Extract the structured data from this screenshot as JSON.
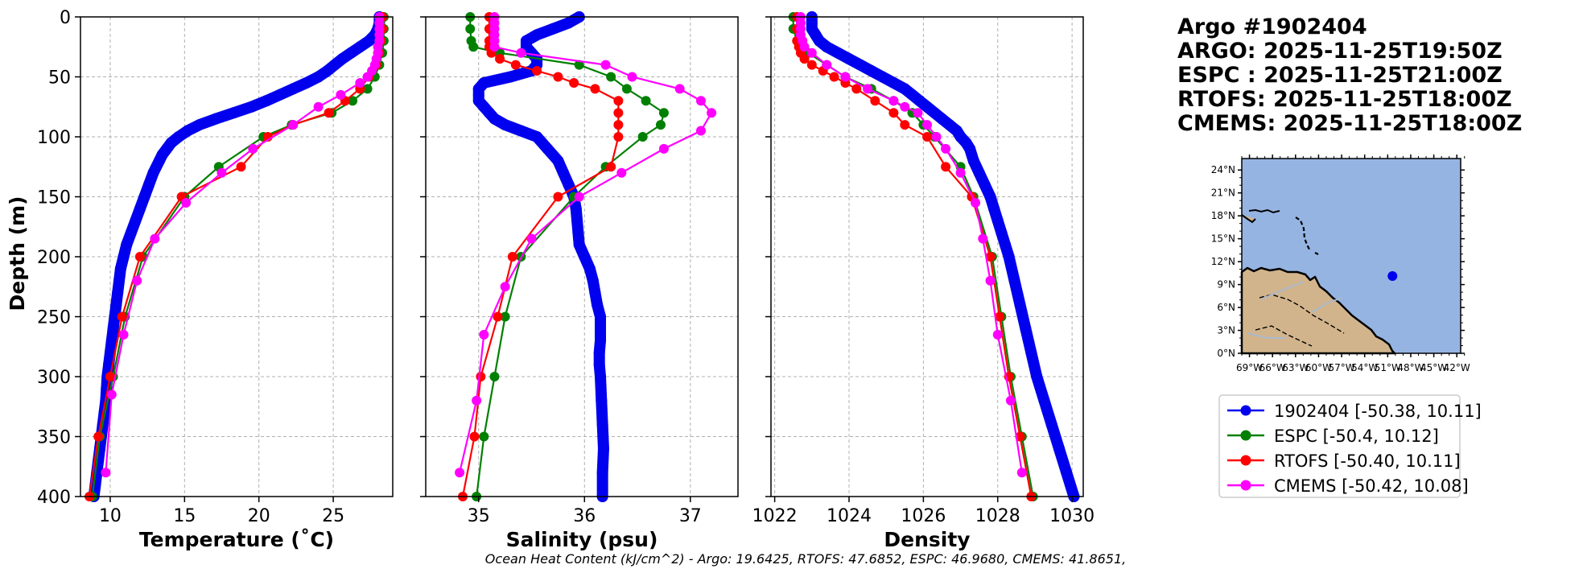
{
  "header": {
    "lines": [
      "Argo #1902404",
      "ARGO: 2025-11-25T19:50Z",
      "ESPC : 2025-11-25T21:00Z",
      "RTOFS: 2025-11-25T18:00Z",
      "CMEMS: 2025-11-25T18:00Z"
    ]
  },
  "footer": {
    "ohc": "Ocean Heat Content (kJ/cm^2) - Argo: 19.6425,  RTOFS: 47.6852,  ESPC: 46.9680,  CMEMS: 41.8651,"
  },
  "colors": {
    "argo": "#0000ee",
    "espc": "#008000",
    "rtofs": "#ff0000",
    "cmems": "#ff00ff",
    "ocean": "#95b4e2",
    "land": "#d2b48c"
  },
  "legend": [
    {
      "key": "argo",
      "label": "1902404 [-50.38, 10.11]"
    },
    {
      "key": "espc",
      "label": "ESPC [-50.4, 10.12]"
    },
    {
      "key": "rtofs",
      "label": "RTOFS [-50.40, 10.11]"
    },
    {
      "key": "cmems",
      "label": "CMEMS [-50.42, 10.08]"
    }
  ],
  "chart_data": [
    {
      "type": "line",
      "id": "temperature",
      "xlabel": "Temperature (˚C)",
      "ylabel": "Depth (m)",
      "xlim": [
        8,
        29
      ],
      "ylim": [
        400,
        0
      ],
      "xticks": [
        10,
        15,
        20,
        25
      ],
      "yticks": [
        0,
        50,
        100,
        150,
        200,
        250,
        300,
        350,
        400
      ],
      "grid": true,
      "series": [
        {
          "key": "argo",
          "name": "1902404",
          "marker": "dense",
          "depth": [
            0,
            5,
            10,
            15,
            20,
            25,
            30,
            35,
            40,
            45,
            50,
            55,
            60,
            65,
            70,
            75,
            80,
            85,
            90,
            95,
            100,
            105,
            110,
            115,
            120,
            130,
            140,
            150,
            160,
            170,
            180,
            190,
            200,
            210,
            220,
            230,
            240,
            250,
            260,
            270,
            280,
            290,
            300,
            310,
            320,
            330,
            340,
            350,
            360,
            370,
            380,
            390,
            400
          ],
          "values": [
            28.1,
            28.1,
            28.0,
            27.8,
            27.4,
            26.8,
            26.2,
            25.6,
            25.1,
            24.6,
            24.0,
            23.2,
            22.3,
            21.4,
            20.5,
            19.5,
            18.3,
            17.1,
            16.0,
            15.2,
            14.6,
            14.1,
            13.8,
            13.5,
            13.3,
            12.9,
            12.6,
            12.3,
            12.0,
            11.7,
            11.4,
            11.1,
            10.9,
            10.7,
            10.6,
            10.5,
            10.4,
            10.3,
            10.2,
            10.1,
            10.0,
            9.9,
            9.8,
            9.75,
            9.7,
            9.6,
            9.5,
            9.4,
            9.3,
            9.2,
            9.1,
            9.0,
            8.9
          ]
        },
        {
          "key": "espc",
          "name": "ESPC",
          "depth": [
            0,
            10,
            20,
            30,
            40,
            50,
            60,
            70,
            80,
            90,
            100,
            125,
            150,
            200,
            250,
            300,
            350,
            400
          ],
          "values": [
            28.4,
            28.4,
            28.4,
            28.3,
            28.1,
            27.8,
            27.3,
            26.3,
            24.9,
            22.2,
            20.3,
            17.3,
            15.0,
            12.2,
            11.0,
            10.2,
            9.3,
            8.8
          ]
        },
        {
          "key": "rtofs",
          "name": "RTOFS",
          "depth": [
            0,
            10,
            20,
            30,
            40,
            50,
            60,
            70,
            80,
            90,
            100,
            125,
            150,
            200,
            250,
            300,
            350,
            400
          ],
          "values": [
            28.3,
            28.3,
            28.2,
            28.1,
            27.9,
            27.4,
            26.8,
            25.8,
            24.7,
            22.3,
            20.6,
            18.8,
            14.8,
            12.0,
            10.8,
            10.0,
            9.2,
            8.6
          ]
        },
        {
          "key": "cmems",
          "name": "CMEMS",
          "depth": [
            0,
            5,
            10,
            15,
            20,
            25,
            30,
            35,
            40,
            45,
            50,
            55,
            65,
            75,
            90,
            110,
            130,
            155,
            185,
            220,
            265,
            315,
            380
          ],
          "values": [
            28.1,
            28.1,
            28.1,
            28.1,
            28.1,
            28.0,
            28.0,
            27.9,
            27.8,
            27.6,
            27.3,
            26.8,
            25.5,
            24.0,
            22.3,
            19.6,
            17.5,
            15.1,
            13.0,
            11.8,
            10.9,
            10.1,
            9.7
          ]
        }
      ]
    },
    {
      "type": "line",
      "id": "salinity",
      "xlabel": "Salinity (psu)",
      "xlim": [
        34.5,
        37.45
      ],
      "ylim": [
        400,
        0
      ],
      "xticks": [
        35,
        36,
        37
      ],
      "grid": true,
      "series": [
        {
          "key": "argo",
          "name": "1902404",
          "marker": "dense",
          "depth": [
            0,
            5,
            10,
            15,
            20,
            25,
            30,
            35,
            40,
            45,
            50,
            55,
            60,
            65,
            70,
            75,
            80,
            85,
            90,
            95,
            100,
            110,
            120,
            130,
            140,
            150,
            160,
            170,
            180,
            190,
            200,
            210,
            220,
            230,
            240,
            250,
            260,
            270,
            280,
            290,
            300,
            320,
            340,
            360,
            380,
            400
          ],
          "values": [
            35.95,
            35.85,
            35.7,
            35.55,
            35.45,
            35.45,
            35.5,
            35.55,
            35.55,
            35.5,
            35.3,
            35.05,
            35.0,
            35.0,
            35.0,
            35.05,
            35.1,
            35.15,
            35.25,
            35.4,
            35.55,
            35.65,
            35.75,
            35.8,
            35.85,
            35.9,
            35.92,
            35.93,
            35.94,
            35.95,
            36.0,
            36.05,
            36.08,
            36.1,
            36.12,
            36.15,
            36.15,
            36.15,
            36.14,
            36.14,
            36.15,
            36.16,
            36.17,
            36.18,
            36.17,
            36.17
          ]
        },
        {
          "key": "espc",
          "name": "ESPC",
          "depth": [
            0,
            10,
            20,
            25,
            30,
            40,
            50,
            60,
            70,
            80,
            90,
            100,
            125,
            150,
            200,
            250,
            300,
            350,
            400
          ],
          "values": [
            34.92,
            34.92,
            34.93,
            34.95,
            35.2,
            35.95,
            36.25,
            36.4,
            36.58,
            36.75,
            36.72,
            36.55,
            36.2,
            35.9,
            35.4,
            35.25,
            35.15,
            35.05,
            34.98
          ]
        },
        {
          "key": "rtofs",
          "name": "RTOFS",
          "depth": [
            0,
            10,
            20,
            25,
            30,
            35,
            40,
            45,
            50,
            55,
            60,
            70,
            80,
            90,
            100,
            125,
            150,
            200,
            250,
            300,
            350,
            400
          ],
          "values": [
            35.1,
            35.1,
            35.1,
            35.1,
            35.12,
            35.2,
            35.35,
            35.55,
            35.75,
            35.9,
            36.1,
            36.32,
            36.32,
            36.32,
            36.32,
            36.25,
            35.75,
            35.32,
            35.18,
            35.02,
            34.96,
            34.85
          ]
        },
        {
          "key": "cmems",
          "name": "CMEMS",
          "depth": [
            0,
            5,
            10,
            15,
            20,
            25,
            30,
            40,
            50,
            60,
            70,
            80,
            95,
            110,
            130,
            150,
            185,
            225,
            265,
            320,
            380
          ],
          "values": [
            35.15,
            35.15,
            35.15,
            35.15,
            35.15,
            35.15,
            35.4,
            36.2,
            36.45,
            36.9,
            37.1,
            37.2,
            37.1,
            36.75,
            36.35,
            35.95,
            35.5,
            35.25,
            35.05,
            34.98,
            34.82
          ]
        }
      ]
    },
    {
      "type": "line",
      "id": "density",
      "xlabel": "Density",
      "xlim": [
        1021.9,
        1030.3
      ],
      "ylim": [
        400,
        0
      ],
      "xticks": [
        1022,
        1024,
        1026,
        1028,
        1030
      ],
      "grid": true,
      "series": [
        {
          "key": "argo",
          "name": "1902404",
          "marker": "dense",
          "depth": [
            0,
            5,
            10,
            15,
            20,
            25,
            30,
            35,
            40,
            45,
            50,
            55,
            60,
            65,
            70,
            75,
            80,
            85,
            90,
            95,
            100,
            105,
            110,
            120,
            130,
            140,
            150,
            160,
            170,
            180,
            190,
            200,
            220,
            240,
            260,
            280,
            300,
            320,
            340,
            360,
            380,
            400
          ],
          "values": [
            1023.0,
            1023.0,
            1023.0,
            1023.1,
            1023.2,
            1023.4,
            1023.7,
            1024.0,
            1024.3,
            1024.6,
            1024.9,
            1025.2,
            1025.5,
            1025.7,
            1025.9,
            1026.1,
            1026.3,
            1026.5,
            1026.7,
            1026.9,
            1027.0,
            1027.15,
            1027.25,
            1027.35,
            1027.5,
            1027.65,
            1027.8,
            1027.9,
            1028.0,
            1028.1,
            1028.2,
            1028.3,
            1028.45,
            1028.6,
            1028.75,
            1028.9,
            1029.05,
            1029.25,
            1029.45,
            1029.65,
            1029.85,
            1030.05
          ]
        },
        {
          "key": "espc",
          "name": "ESPC",
          "depth": [
            0,
            10,
            20,
            25,
            30,
            40,
            50,
            60,
            70,
            80,
            90,
            100,
            125,
            150,
            200,
            250,
            300,
            350,
            400
          ],
          "values": [
            1022.5,
            1022.5,
            1022.6,
            1022.7,
            1022.9,
            1023.4,
            1023.9,
            1024.6,
            1025.2,
            1025.7,
            1026.0,
            1026.3,
            1027.0,
            1027.35,
            1027.85,
            1028.1,
            1028.35,
            1028.65,
            1028.95
          ]
        },
        {
          "key": "rtofs",
          "name": "RTOFS",
          "depth": [
            0,
            10,
            20,
            25,
            30,
            35,
            40,
            45,
            50,
            55,
            60,
            70,
            80,
            90,
            100,
            125,
            150,
            200,
            250,
            300,
            350,
            400
          ],
          "values": [
            1022.6,
            1022.6,
            1022.6,
            1022.65,
            1022.7,
            1022.8,
            1023.0,
            1023.3,
            1023.6,
            1023.9,
            1024.2,
            1024.7,
            1025.2,
            1025.5,
            1026.1,
            1026.6,
            1027.3,
            1027.8,
            1028.05,
            1028.3,
            1028.6,
            1028.9
          ]
        },
        {
          "key": "cmems",
          "name": "CMEMS",
          "depth": [
            0,
            5,
            10,
            15,
            20,
            25,
            30,
            40,
            50,
            60,
            70,
            75,
            80,
            90,
            100,
            110,
            130,
            155,
            185,
            220,
            265,
            320,
            380
          ],
          "values": [
            1022.7,
            1022.7,
            1022.7,
            1022.7,
            1022.75,
            1022.8,
            1023.0,
            1023.4,
            1023.9,
            1024.5,
            1025.2,
            1025.5,
            1025.85,
            1026.1,
            1026.35,
            1026.6,
            1027.0,
            1027.4,
            1027.6,
            1027.8,
            1028.0,
            1028.35,
            1028.65
          ]
        }
      ]
    }
  ],
  "map": {
    "lat_ticks": [
      "24°N",
      "21°N",
      "18°N",
      "15°N",
      "12°N",
      "9°N",
      "6°N",
      "3°N",
      "0°N"
    ],
    "lon_ticks": [
      "69°W",
      "66°W",
      "63°W",
      "60°W",
      "57°W",
      "54°W",
      "51°W",
      "48°W",
      "45°W",
      "42°W"
    ],
    "lon_range": [
      -70,
      -41.5
    ],
    "lat_range": [
      0,
      25.5
    ],
    "float_position": {
      "lon": -50.38,
      "lat": 10.11
    }
  }
}
